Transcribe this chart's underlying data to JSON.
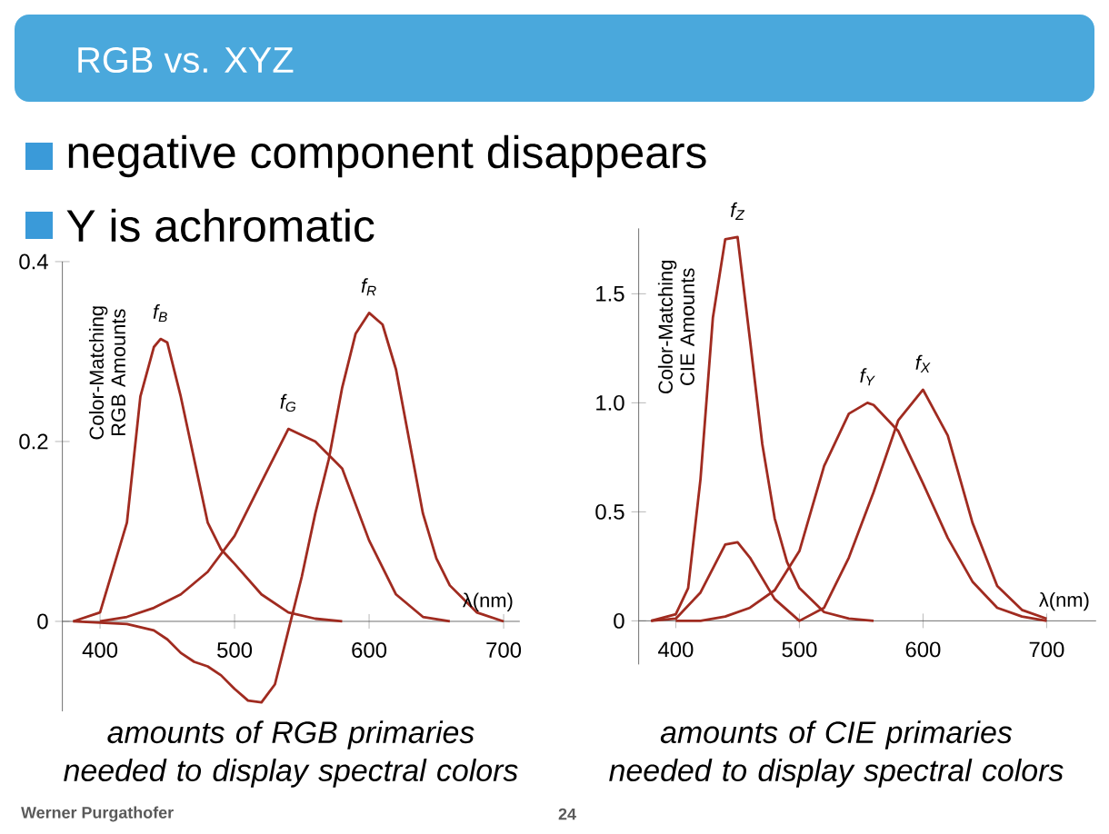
{
  "chart_data": [
    {
      "type": "line",
      "title": "RGB vs. XYZ",
      "annotations": [
        "negative component disappears",
        "Y is achromatic",
        "amounts of RGB primaries needed to display spectral colors",
        "Werner Purgathofer",
        "24"
      ],
      "xlabel": "λ(nm)",
      "ylabel": "Color-Matching RGB Amounts",
      "xlim": [
        372,
        712
      ],
      "ylim": [
        -0.1,
        0.4
      ],
      "xticks": [
        400,
        500,
        600,
        700
      ],
      "yticks": [
        0,
        0.2,
        0.4
      ],
      "marker": "none",
      "line_style": "solid",
      "series": [
        {
          "name": "f$_{B}$",
          "color": "#a02b20",
          "x": [
            380,
            400,
            420,
            430,
            440,
            445,
            450,
            460,
            470,
            480,
            490,
            500,
            520,
            540,
            560,
            580
          ],
          "values": [
            0,
            0.01,
            0.11,
            0.25,
            0.305,
            0.314,
            0.31,
            0.25,
            0.18,
            0.11,
            0.08,
            0.064,
            0.03,
            0.01,
            0.003,
            0
          ]
        },
        {
          "name": "f$_{G}$",
          "color": "#a02b20",
          "x": [
            400,
            420,
            440,
            460,
            480,
            500,
            520,
            540,
            560,
            580,
            600,
            620,
            640,
            660
          ],
          "values": [
            0,
            0.005,
            0.015,
            0.03,
            0.055,
            0.095,
            0.155,
            0.214,
            0.2,
            0.17,
            0.09,
            0.03,
            0.005,
            0
          ]
        },
        {
          "name": "f$_{R}$",
          "color": "#a02b20",
          "x": [
            380,
            420,
            440,
            450,
            460,
            470,
            480,
            490,
            500,
            510,
            520,
            530,
            540,
            550,
            560,
            570,
            580,
            590,
            600,
            610,
            620,
            630,
            640,
            650,
            660,
            680,
            700
          ],
          "values": [
            0,
            -0.003,
            -0.01,
            -0.02,
            -0.035,
            -0.045,
            -0.05,
            -0.06,
            -0.075,
            -0.088,
            -0.09,
            -0.07,
            -0.01,
            0.05,
            0.12,
            0.18,
            0.26,
            0.32,
            0.343,
            0.33,
            0.28,
            0.2,
            0.12,
            0.07,
            0.04,
            0.01,
            0
          ]
        }
      ]
    },
    {
      "type": "line",
      "annotations": [
        "amounts of CIE primaries needed to display spectral colors"
      ],
      "xlabel": "λ(nm)",
      "ylabel": "Color-Matching CIE Amounts",
      "xlim": [
        370,
        740
      ],
      "ylim": [
        -0.2,
        1.8
      ],
      "xticks": [
        400,
        500,
        600,
        700
      ],
      "yticks": [
        0,
        0.5,
        {
          "value": 1,
          "label": "1.0"
        },
        1.5
      ],
      "marker": "none",
      "line_style": "solid",
      "series": [
        {
          "name": "f$_{Z}$",
          "color": "#a02b20",
          "x": [
            380,
            400,
            410,
            420,
            430,
            440,
            450,
            460,
            470,
            480,
            490,
            500,
            520,
            540,
            560
          ],
          "values": [
            0,
            0.03,
            0.15,
            0.65,
            1.39,
            1.75,
            1.76,
            1.29,
            0.81,
            0.47,
            0.27,
            0.15,
            0.04,
            0.01,
            0
          ]
        },
        {
          "name": "f$_{Y}$",
          "color": "#a02b20",
          "x": [
            400,
            420,
            440,
            460,
            480,
            500,
            520,
            540,
            555,
            560,
            580,
            600,
            620,
            640,
            660,
            680,
            700
          ],
          "values": [
            0,
            0,
            0.02,
            0.06,
            0.14,
            0.32,
            0.71,
            0.95,
            1.0,
            0.99,
            0.87,
            0.63,
            0.38,
            0.18,
            0.06,
            0.02,
            0
          ]
        },
        {
          "name": "f$_{X}$",
          "color": "#a02b20",
          "x": [
            380,
            400,
            420,
            440,
            450,
            460,
            480,
            500,
            520,
            540,
            560,
            580,
            600,
            620,
            640,
            660,
            680,
            700
          ],
          "values": [
            0,
            0.01,
            0.13,
            0.35,
            0.36,
            0.29,
            0.1,
            0,
            0.06,
            0.29,
            0.59,
            0.92,
            1.06,
            0.85,
            0.45,
            0.16,
            0.05,
            0.01
          ]
        }
      ]
    }
  ]
}
